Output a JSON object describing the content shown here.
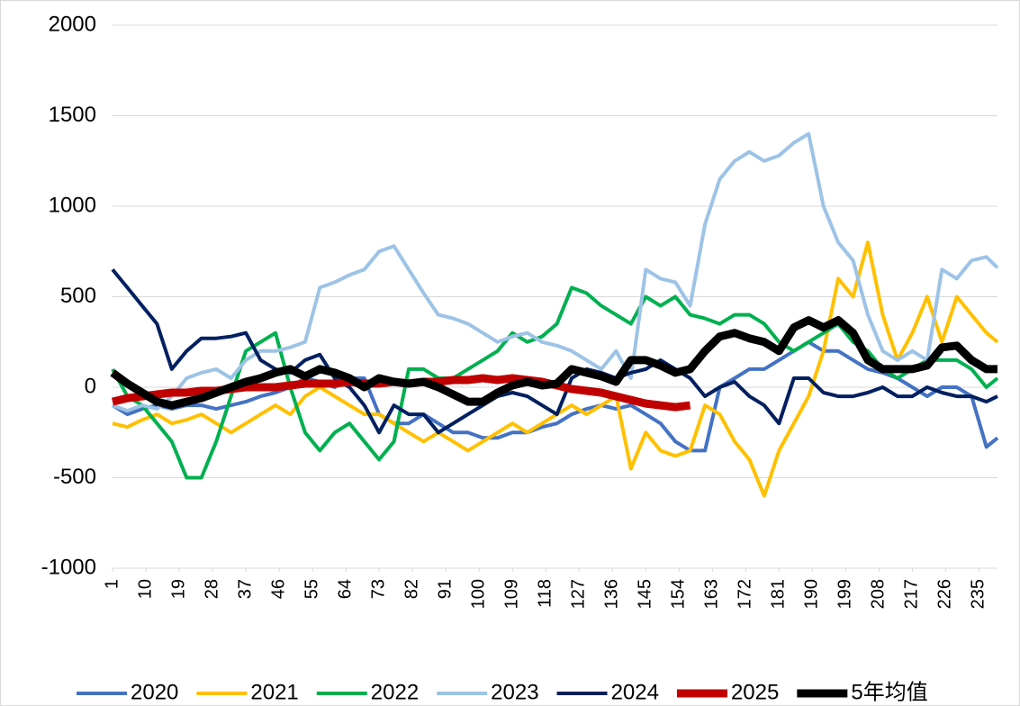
{
  "chart_data": {
    "type": "line",
    "x": [
      1,
      5,
      9,
      13,
      17,
      21,
      25,
      29,
      33,
      37,
      41,
      45,
      49,
      53,
      57,
      61,
      65,
      69,
      73,
      77,
      81,
      85,
      89,
      93,
      97,
      101,
      105,
      109,
      113,
      117,
      121,
      125,
      129,
      133,
      137,
      141,
      145,
      149,
      153,
      157,
      161,
      165,
      169,
      173,
      177,
      181,
      185,
      189,
      193,
      197,
      201,
      205,
      209,
      213,
      217,
      221,
      225,
      229,
      233,
      237,
      240
    ],
    "xlim": [
      1,
      240
    ],
    "xticks": [
      1,
      10,
      19,
      28,
      37,
      46,
      55,
      64,
      73,
      82,
      91,
      100,
      109,
      118,
      127,
      136,
      145,
      154,
      163,
      172,
      181,
      190,
      199,
      208,
      217,
      226,
      235
    ],
    "ylim": [
      -1000,
      2000
    ],
    "yticks": [
      -1000,
      -500,
      0,
      500,
      1000,
      1500,
      2000
    ],
    "grid": true,
    "legend": "bottom",
    "series": [
      {
        "name": "2020",
        "color": "#4472c4",
        "values": [
          -100,
          -150,
          -120,
          -100,
          -120,
          -100,
          -100,
          -120,
          -100,
          -80,
          -50,
          -30,
          0,
          50,
          30,
          0,
          50,
          50,
          -150,
          -200,
          -200,
          -150,
          -200,
          -250,
          -250,
          -280,
          -280,
          -250,
          -250,
          -220,
          -200,
          -150,
          -120,
          -100,
          -120,
          -100,
          -150,
          -200,
          -300,
          -350,
          -350,
          0,
          50,
          100,
          100,
          150,
          200,
          250,
          200,
          200,
          150,
          100,
          80,
          50,
          0,
          -50,
          0,
          0,
          -50,
          -330,
          -280
        ]
      },
      {
        "name": "2021",
        "color": "#ffc000",
        "values": [
          -200,
          -220,
          -180,
          -150,
          -200,
          -180,
          -150,
          -200,
          -250,
          -200,
          -150,
          -100,
          -150,
          -50,
          0,
          -50,
          -100,
          -150,
          -150,
          -200,
          -250,
          -300,
          -250,
          -300,
          -350,
          -300,
          -250,
          -200,
          -250,
          -200,
          -150,
          -100,
          -150,
          -100,
          -50,
          -450,
          -250,
          -350,
          -380,
          -350,
          -100,
          -150,
          -300,
          -400,
          -600,
          -350,
          -200,
          -50,
          200,
          600,
          500,
          800,
          400,
          150,
          300,
          500,
          250,
          500,
          400,
          300,
          250
        ]
      },
      {
        "name": "2022",
        "color": "#00b050",
        "values": [
          100,
          -50,
          -100,
          -200,
          -300,
          -500,
          -500,
          -300,
          -50,
          200,
          250,
          300,
          0,
          -250,
          -350,
          -250,
          -200,
          -300,
          -400,
          -300,
          100,
          100,
          50,
          50,
          100,
          150,
          200,
          300,
          250,
          280,
          350,
          550,
          520,
          450,
          400,
          350,
          500,
          450,
          500,
          400,
          380,
          350,
          400,
          400,
          350,
          250,
          200,
          250,
          300,
          350,
          250,
          200,
          100,
          50,
          100,
          150,
          150,
          150,
          100,
          0,
          50
        ]
      },
      {
        "name": "2023",
        "color": "#9dc3e6",
        "values": [
          -100,
          -130,
          -100,
          -120,
          -50,
          50,
          80,
          100,
          50,
          150,
          200,
          200,
          220,
          250,
          550,
          580,
          620,
          650,
          750,
          780,
          650,
          520,
          400,
          380,
          350,
          300,
          250,
          280,
          300,
          250,
          230,
          200,
          150,
          100,
          200,
          50,
          650,
          600,
          580,
          450,
          900,
          1150,
          1250,
          1300,
          1250,
          1280,
          1350,
          1400,
          1000,
          800,
          700,
          400,
          200,
          150,
          200,
          150,
          650,
          600,
          700,
          720,
          660
        ]
      },
      {
        "name": "2024",
        "color": "#002060",
        "values": [
          650,
          550,
          450,
          350,
          100,
          200,
          270,
          270,
          280,
          300,
          150,
          100,
          80,
          150,
          180,
          50,
          0,
          -100,
          -250,
          -100,
          -150,
          -150,
          -250,
          -200,
          -150,
          -100,
          -50,
          -30,
          -50,
          -100,
          -150,
          50,
          100,
          80,
          50,
          80,
          100,
          150,
          100,
          50,
          -50,
          0,
          30,
          -50,
          -100,
          -200,
          50,
          50,
          -30,
          -50,
          -50,
          -30,
          0,
          -50,
          -50,
          0,
          -30,
          -50,
          -50,
          -80,
          -50
        ]
      },
      {
        "name": "2025",
        "color": "#c00000",
        "values": [
          -80,
          -60,
          -50,
          -40,
          -30,
          -30,
          -20,
          -20,
          -10,
          0,
          0,
          0,
          10,
          20,
          20,
          20,
          30,
          20,
          20,
          30,
          20,
          30,
          30,
          40,
          40,
          50,
          40,
          50,
          40,
          30,
          10,
          -10,
          -20,
          -30,
          -50,
          -70,
          -90,
          -100,
          -110,
          -100,
          null,
          null,
          null,
          null,
          null,
          null,
          null,
          null,
          null,
          null,
          null,
          null,
          null,
          null,
          null,
          null,
          null,
          null,
          null,
          null,
          null
        ]
      },
      {
        "name": "5年均值",
        "color": "#000000",
        "values": [
          80,
          20,
          -30,
          -80,
          -100,
          -80,
          -60,
          -30,
          0,
          30,
          50,
          80,
          100,
          60,
          100,
          80,
          50,
          0,
          50,
          30,
          20,
          30,
          0,
          -40,
          -80,
          -80,
          -30,
          10,
          30,
          10,
          20,
          100,
          80,
          60,
          30,
          150,
          150,
          120,
          80,
          100,
          200,
          280,
          300,
          270,
          250,
          200,
          330,
          370,
          330,
          370,
          300,
          150,
          100,
          100,
          100,
          120,
          220,
          230,
          150,
          100,
          100
        ]
      }
    ]
  }
}
